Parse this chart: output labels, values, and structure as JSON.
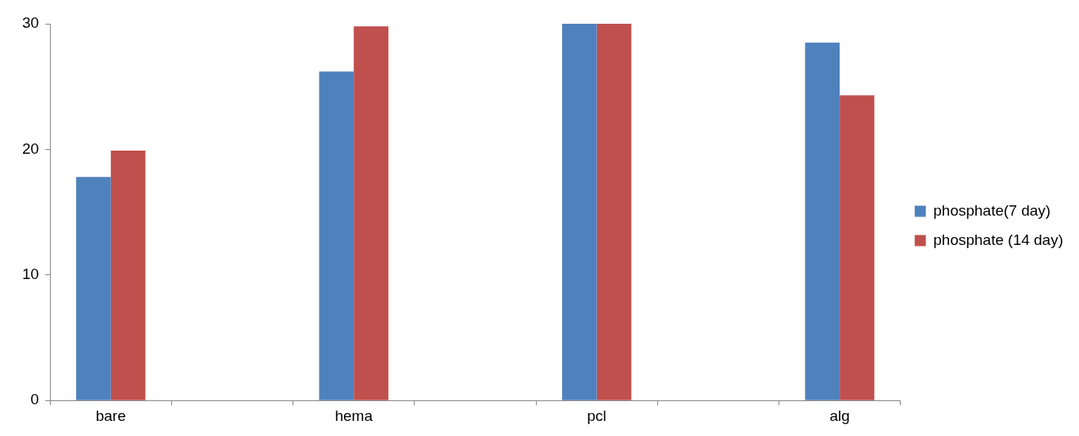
{
  "chart_data": {
    "type": "bar",
    "categories": [
      "bare",
      null,
      "hema",
      null,
      "pcl",
      null,
      "alg"
    ],
    "series": [
      {
        "name": "phosphate(7 day)",
        "color": "#4f81bd",
        "values": [
          17.8,
          null,
          26.2,
          null,
          30,
          null,
          28.5
        ]
      },
      {
        "name": "phosphate (14 day)",
        "color": "#c0504d",
        "values": [
          19.9,
          null,
          29.8,
          null,
          30,
          null,
          24.3
        ]
      }
    ],
    "ylim": [
      0,
      30
    ],
    "yticks": [
      0,
      10,
      20,
      30
    ],
    "grid": false,
    "legend": "right"
  }
}
